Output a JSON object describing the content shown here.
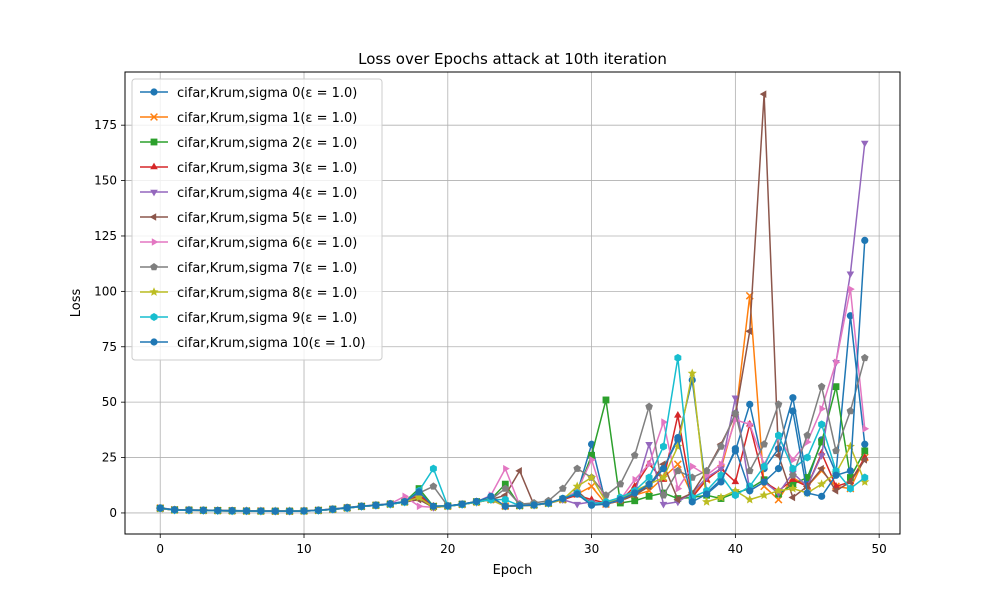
{
  "chart_data": {
    "type": "line",
    "title": "Loss over Epochs attack at 10th iteration",
    "xlabel": "Epoch",
    "ylabel": "Loss",
    "xlim": [
      -2.45,
      51.45
    ],
    "ylim": [
      -9.5,
      199
    ],
    "xticks": [
      0,
      10,
      20,
      30,
      40,
      50
    ],
    "yticks": [
      0,
      25,
      50,
      75,
      100,
      125,
      150,
      175
    ],
    "grid": true,
    "legend_position": "upper-left",
    "x": [
      0,
      1,
      2,
      3,
      4,
      5,
      6,
      7,
      8,
      9,
      10,
      11,
      12,
      13,
      14,
      15,
      16,
      17,
      18,
      19,
      20,
      21,
      22,
      23,
      24,
      25,
      26,
      27,
      28,
      29,
      30,
      31,
      32,
      33,
      34,
      35,
      36,
      37,
      38,
      39,
      40,
      41,
      42,
      43,
      44,
      45,
      46,
      47,
      48,
      49
    ],
    "series": [
      {
        "name": "cifar,Krum,sigma 0(ε = 1.0)",
        "color": "#1f77b4",
        "marker": "circle",
        "values": [
          2.3,
          1.5,
          1.4,
          1.3,
          1.2,
          1.1,
          1.0,
          0.9,
          0.9,
          0.9,
          1.0,
          1.3,
          1.8,
          2.5,
          3.1,
          3.6,
          4.2,
          5.2,
          9.0,
          3.0,
          3.2,
          4.0,
          5.2,
          6.5,
          3.2,
          3.5,
          3.8,
          4.5,
          6.5,
          9.0,
          31.0,
          4.0,
          6.0,
          9.0,
          12.0,
          20.0,
          33.0,
          60.0,
          9.0,
          15.0,
          28.0,
          49.0,
          20.0,
          29.0,
          52.0,
          14.0,
          33.0,
          18.0,
          89.0,
          31.0
        ]
      },
      {
        "name": "cifar,Krum,sigma 1(ε = 1.0)",
        "color": "#ff7f0e",
        "marker": "x",
        "values": [
          2.2,
          1.4,
          1.3,
          1.2,
          1.1,
          1.0,
          0.9,
          0.9,
          0.8,
          0.8,
          0.9,
          1.2,
          1.7,
          2.3,
          3.0,
          3.5,
          4.0,
          5.0,
          7.0,
          3.0,
          3.1,
          3.9,
          5.0,
          6.0,
          3.1,
          3.3,
          3.6,
          4.4,
          6.0,
          8.5,
          12.0,
          4.0,
          5.5,
          8.0,
          10.0,
          16.0,
          22.0,
          8.0,
          15.0,
          20.0,
          43.0,
          98.0,
          12.0,
          6.0,
          16.0,
          12.0,
          19.0,
          12.0,
          11.0,
          25.0
        ]
      },
      {
        "name": "cifar,Krum,sigma 2(ε = 1.0)",
        "color": "#2ca02c",
        "marker": "square",
        "values": [
          2.1,
          1.4,
          1.3,
          1.2,
          1.1,
          1.0,
          0.9,
          0.8,
          0.8,
          0.8,
          0.9,
          1.2,
          1.7,
          2.3,
          3.0,
          3.5,
          4.0,
          5.0,
          11.0,
          3.0,
          3.2,
          4.0,
          5.1,
          6.2,
          13.0,
          3.3,
          3.6,
          4.4,
          6.2,
          9.0,
          26.0,
          51.0,
          4.5,
          5.5,
          7.5,
          9.0,
          6.5,
          7.0,
          8.0,
          6.5,
          9.0,
          11.0,
          15.0,
          8.5,
          13.0,
          16.0,
          32.0,
          57.0,
          16.0,
          28.0
        ]
      },
      {
        "name": "cifar,Krum,sigma 3(ε = 1.0)",
        "color": "#d62728",
        "marker": "triangle-up",
        "values": [
          2.0,
          1.3,
          1.2,
          1.1,
          1.0,
          0.9,
          0.9,
          0.8,
          0.8,
          0.8,
          0.9,
          1.1,
          1.6,
          2.2,
          2.9,
          3.4,
          3.9,
          4.9,
          8.0,
          3.0,
          3.1,
          3.8,
          5.0,
          6.0,
          3.0,
          3.2,
          3.5,
          4.3,
          6.0,
          8.0,
          6.0,
          4.5,
          5.5,
          12.0,
          22.0,
          15.0,
          44.0,
          7.0,
          15.0,
          20.0,
          14.0,
          40.0,
          14.0,
          10.0,
          15.0,
          12.0,
          27.0,
          12.0,
          14.0,
          25.0
        ]
      },
      {
        "name": "cifar,Krum,sigma 4(ε = 1.0)",
        "color": "#9467bd",
        "marker": "triangle-down",
        "values": [
          2.1,
          1.3,
          1.2,
          1.1,
          1.0,
          0.9,
          0.9,
          0.8,
          0.8,
          0.8,
          0.9,
          1.1,
          1.6,
          2.2,
          2.9,
          3.4,
          3.9,
          4.9,
          7.0,
          2.5,
          3.0,
          3.8,
          4.8,
          6.0,
          3.0,
          3.2,
          3.5,
          4.3,
          6.0,
          4.0,
          5.0,
          4.0,
          6.0,
          9.0,
          31.0,
          4.0,
          5.0,
          9.0,
          16.0,
          20.0,
          52.0,
          10.0,
          14.0,
          9.0,
          18.0,
          12.0,
          26.0,
          68.0,
          108.0,
          167.0
        ]
      },
      {
        "name": "cifar,Krum,sigma 5(ε = 1.0)",
        "color": "#8c564b",
        "marker": "triangle-left",
        "values": [
          2.0,
          1.3,
          1.2,
          1.1,
          1.0,
          0.9,
          0.8,
          0.8,
          0.8,
          0.8,
          0.9,
          1.1,
          1.6,
          2.2,
          2.9,
          3.4,
          3.9,
          4.9,
          6.0,
          2.5,
          3.0,
          3.8,
          4.8,
          6.0,
          8.0,
          19.0,
          3.5,
          4.3,
          6.0,
          10.0,
          4.0,
          4.0,
          5.5,
          8.0,
          12.0,
          22.0,
          6.0,
          9.0,
          19.0,
          31.0,
          44.0,
          82.0,
          189.0,
          26.0,
          7.0,
          12.0,
          20.0,
          10.0,
          14.0,
          24.0
        ]
      },
      {
        "name": "cifar,Krum,sigma 6(ε = 1.0)",
        "color": "#e377c2",
        "marker": "triangle-right",
        "values": [
          2.2,
          1.4,
          1.3,
          1.2,
          1.1,
          1.0,
          0.9,
          0.9,
          0.8,
          0.8,
          0.9,
          1.2,
          1.7,
          2.3,
          3.0,
          3.5,
          4.1,
          7.5,
          3.0,
          2.5,
          3.1,
          3.9,
          5.0,
          8.0,
          20.0,
          3.5,
          3.6,
          4.4,
          6.0,
          10.0,
          24.0,
          4.0,
          6.0,
          15.0,
          22.0,
          41.0,
          11.0,
          21.0,
          17.0,
          22.0,
          42.0,
          40.0,
          22.0,
          34.0,
          24.0,
          32.0,
          47.0,
          68.0,
          101.0,
          38.0
        ]
      },
      {
        "name": "cifar,Krum,sigma 7(ε = 1.0)",
        "color": "#7f7f7f",
        "marker": "pentagon",
        "values": [
          2.1,
          1.3,
          1.2,
          1.1,
          1.0,
          0.9,
          0.9,
          0.8,
          0.8,
          0.8,
          0.9,
          1.1,
          1.6,
          2.2,
          2.9,
          3.4,
          3.9,
          4.9,
          9.0,
          12.0,
          3.1,
          3.8,
          5.0,
          6.0,
          11.0,
          4.0,
          4.5,
          5.5,
          11.0,
          20.0,
          16.0,
          8.0,
          13.0,
          26.0,
          48.0,
          8.0,
          19.0,
          16.0,
          19.0,
          30.0,
          45.0,
          19.0,
          31.0,
          49.0,
          17.0,
          35.0,
          57.0,
          28.0,
          46.0,
          70.0
        ]
      },
      {
        "name": "cifar,Krum,sigma 8(ε = 1.0)",
        "color": "#bcbd22",
        "marker": "star",
        "values": [
          2.0,
          1.3,
          1.2,
          1.1,
          1.0,
          0.9,
          0.8,
          0.8,
          0.8,
          0.8,
          0.9,
          1.1,
          1.6,
          2.2,
          2.9,
          3.4,
          3.9,
          4.9,
          7.0,
          2.5,
          3.0,
          3.8,
          4.8,
          6.0,
          3.0,
          3.2,
          3.5,
          4.3,
          6.0,
          12.0,
          16.0,
          5.0,
          6.0,
          10.0,
          13.0,
          16.0,
          30.0,
          63.0,
          5.0,
          7.0,
          10.0,
          6.0,
          8.0,
          10.0,
          11.0,
          9.0,
          13.0,
          18.0,
          30.0,
          14.0
        ]
      },
      {
        "name": "cifar,Krum,sigma 9(ε = 1.0)",
        "color": "#17becf",
        "marker": "hexagon",
        "values": [
          2.1,
          1.3,
          1.2,
          1.1,
          1.0,
          0.9,
          0.9,
          0.8,
          0.8,
          0.8,
          0.9,
          1.1,
          1.6,
          2.2,
          2.9,
          3.4,
          3.9,
          4.9,
          10.0,
          20.0,
          3.1,
          3.8,
          5.0,
          6.0,
          6.0,
          3.3,
          3.6,
          4.4,
          6.5,
          9.0,
          4.0,
          5.0,
          7.0,
          10.0,
          16.0,
          30.0,
          70.0,
          7.0,
          10.0,
          17.0,
          8.0,
          12.0,
          21.0,
          35.0,
          20.0,
          25.0,
          40.0,
          19.0,
          11.0,
          16.0
        ]
      },
      {
        "name": "cifar,Krum,sigma 10(ε = 1.0)",
        "color": "#1f77b4",
        "marker": "circle",
        "values": [
          2.2,
          1.4,
          1.3,
          1.2,
          1.1,
          1.0,
          0.9,
          0.9,
          0.8,
          0.8,
          0.9,
          1.2,
          1.7,
          2.3,
          3.0,
          3.5,
          4.1,
          5.1,
          9.5,
          3.0,
          3.2,
          4.0,
          5.2,
          7.5,
          3.0,
          3.3,
          3.6,
          4.5,
          6.5,
          8.5,
          3.5,
          4.0,
          6.0,
          9.0,
          13.0,
          20.0,
          34.0,
          5.0,
          8.5,
          14.0,
          29.0,
          10.0,
          14.0,
          20.0,
          46.0,
          9.0,
          7.5,
          17.0,
          19.0,
          123.0
        ]
      }
    ]
  }
}
